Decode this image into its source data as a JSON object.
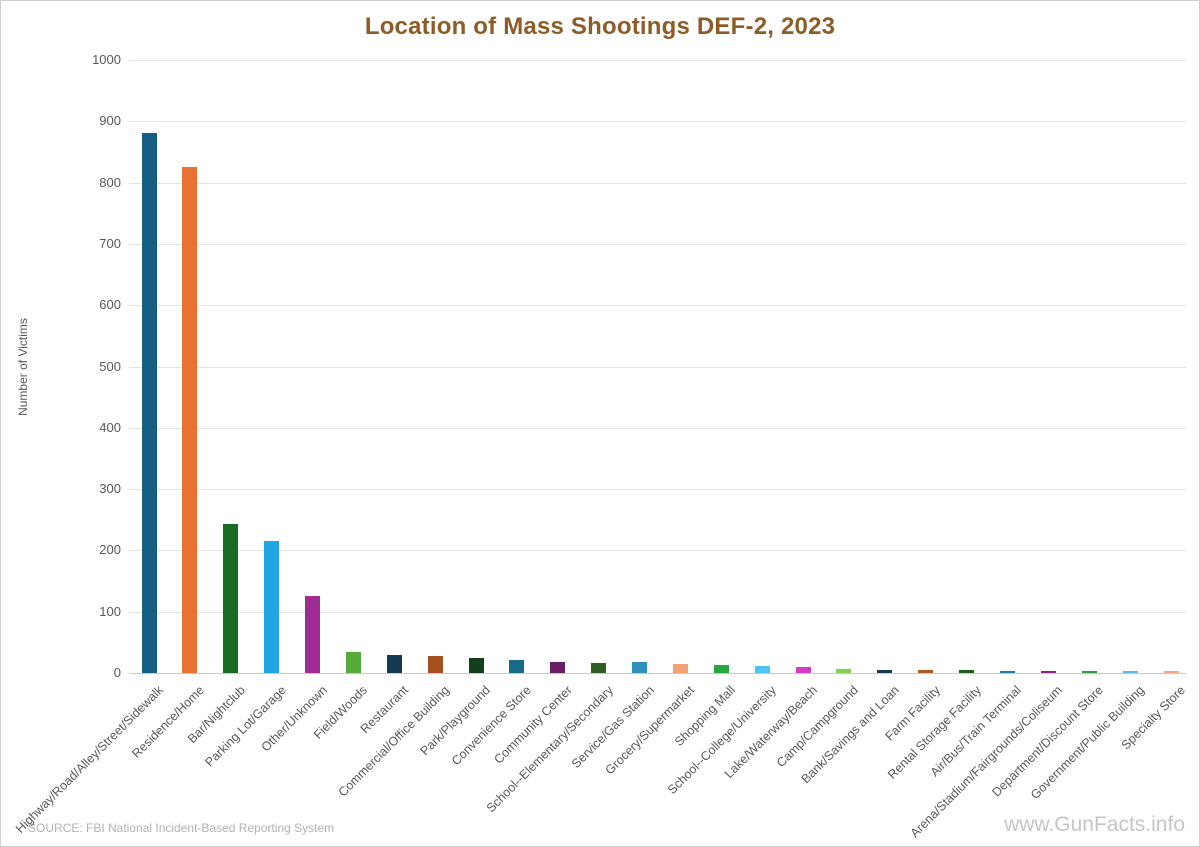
{
  "header": {
    "title": "Location of Mass Shootings DEF-2, 2023"
  },
  "footer": {
    "source": "SOURCE: FBI National Incident-Based Reporting System",
    "watermark": "www.GunFacts.info"
  },
  "colors": {
    "title_text": "#8F5C26",
    "axis_text": "#595959",
    "gridline": "#E4E4E4",
    "axis_line": "#C9C9C9",
    "source_text": "#B3B3B3",
    "watermark_text": "#C6C6C6"
  },
  "chart_data": {
    "type": "bar",
    "title": "Location of Mass Shootings DEF-2, 2023",
    "xlabel": "",
    "ylabel": "Number of Victims",
    "ylim": [
      0,
      1000
    ],
    "ytick_interval": 100,
    "grid": true,
    "legend_position": "none",
    "categories": [
      "Highway/Road/Alley/Street/Sidewalk",
      "Residence/Home",
      "Bar/Nightclub",
      "Parking Lot/Garage",
      "Other/Unknown",
      "Field/Woods",
      "Restaurant",
      "Commercial/Office Building",
      "Park/Playground",
      "Convenience Store",
      "Community Center",
      "School--Elementary/Secondary",
      "Service/Gas Station",
      "Grocery/Supermarket",
      "Shopping Mall",
      "School--College/University",
      "Lake/Waterway/Beach",
      "Camp/Campground",
      "Bank/Savings and Loan",
      "Farm Facility",
      "Rental Storage Facility",
      "Air/Bus/Train Terminal",
      "Arena/Stadium/Fairgrounds/Coliseum",
      "Department/Discount Store",
      "Government/Public Building",
      "Specialty Store"
    ],
    "values": [
      881,
      825,
      243,
      215,
      126,
      34,
      30,
      27,
      24,
      22,
      18,
      17,
      18,
      15,
      13,
      12,
      10,
      6,
      5,
      5,
      5,
      4,
      4,
      4,
      3,
      3
    ],
    "bar_colors": [
      "#156082",
      "#E97132",
      "#196B24",
      "#1FA8DF",
      "#A02B93",
      "#55AB38",
      "#153B52",
      "#A6501E",
      "#153E1C",
      "#176B89",
      "#6B1D64",
      "#2F5E20",
      "#2D8FBE",
      "#F2A273",
      "#27A83B",
      "#4EC3F2",
      "#D23BC6",
      "#7FD150",
      "#153B52",
      "#B55A1E",
      "#1C5E22",
      "#1C7FA6",
      "#8E2486",
      "#2E9C3C",
      "#4FC0EF",
      "#F4A77B"
    ]
  }
}
